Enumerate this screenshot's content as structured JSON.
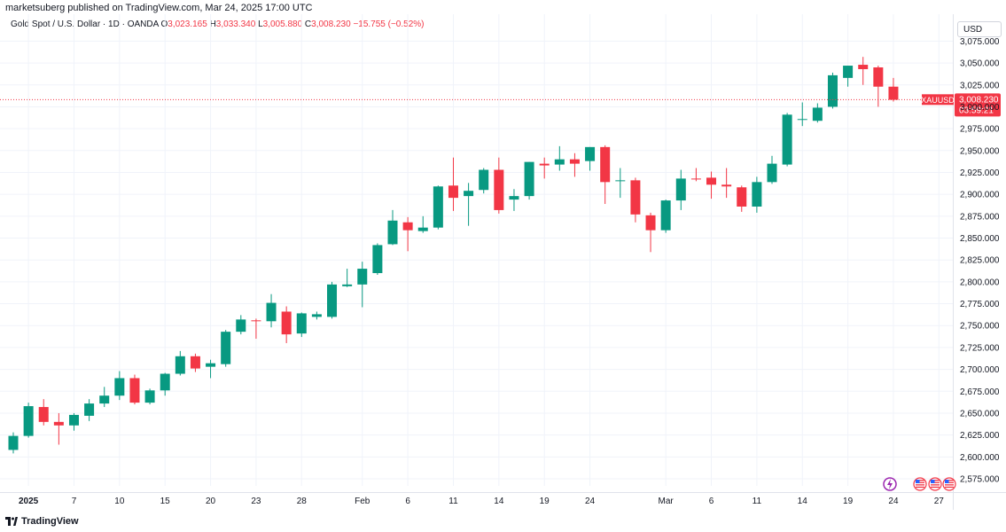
{
  "header": {
    "published": "marketsuberg published on TradingView.com, Mar 24, 2025 17:00 UTC"
  },
  "legend": {
    "symbol": "Gold Spot / U.S. Dollar · 1D · OANDA",
    "o_label": "O",
    "o_value": "3,023.165",
    "h_label": "H",
    "h_value": "3,033.340",
    "l_label": "L",
    "l_value": "3,005.880",
    "c_label": "C",
    "c_value": "3,008.230",
    "change": "−15.755 (−0.52%)"
  },
  "currency": "USD",
  "price_label": {
    "symbol": "XAUUSD",
    "price": "3,008.230",
    "countdown": "03:59:21"
  },
  "footer": {
    "brand": "TradingView"
  },
  "colors": {
    "up": "#089981",
    "down": "#f23645",
    "grid": "#f0f3fa",
    "axis_text": "#131722",
    "last_price_line": "#f23645"
  },
  "icons": [
    "lightning-event-icon",
    "us-flag-event-icon"
  ],
  "chart_data": {
    "type": "candlestick",
    "title": "Gold Spot / U.S. Dollar · 1D · OANDA",
    "ylim": [
      2560,
      3090
    ],
    "y_ticks": [
      2575,
      2600,
      2625,
      2650,
      2675,
      2700,
      2725,
      2750,
      2775,
      2800,
      2825,
      2850,
      2875,
      2900,
      2925,
      2950,
      2975,
      3000,
      3025,
      3050,
      3075
    ],
    "y_tick_labels": [
      "2,575.000",
      "2,600.000",
      "2,625.000",
      "2,650.000",
      "2,675.000",
      "2,700.000",
      "2,725.000",
      "2,750.000",
      "2,775.000",
      "2,800.000",
      "2,825.000",
      "2,850.000",
      "2,875.000",
      "2,900.000",
      "2,925.000",
      "2,950.000",
      "2,975.000",
      "3,000.000",
      "3,025.000",
      "3,050.000",
      "3,075.000"
    ],
    "x_ticks": [
      {
        "label": "2025",
        "index": 1,
        "bold": true
      },
      {
        "label": "7",
        "index": 4
      },
      {
        "label": "10",
        "index": 7
      },
      {
        "label": "15",
        "index": 10
      },
      {
        "label": "20",
        "index": 13
      },
      {
        "label": "23",
        "index": 16
      },
      {
        "label": "28",
        "index": 19
      },
      {
        "label": "Feb",
        "index": 23
      },
      {
        "label": "6",
        "index": 26
      },
      {
        "label": "11",
        "index": 29
      },
      {
        "label": "14",
        "index": 32
      },
      {
        "label": "19",
        "index": 35
      },
      {
        "label": "24",
        "index": 38
      },
      {
        "label": "Mar",
        "index": 43
      },
      {
        "label": "6",
        "index": 46
      },
      {
        "label": "11",
        "index": 49
      },
      {
        "label": "14",
        "index": 52
      },
      {
        "label": "19",
        "index": 55
      },
      {
        "label": "24",
        "index": 58
      },
      {
        "label": "27",
        "index": 61
      }
    ],
    "last_price": 3008.23,
    "candles": [
      {
        "o": 2608,
        "h": 2628,
        "l": 2604,
        "c": 2624
      },
      {
        "o": 2624,
        "h": 2662,
        "l": 2622,
        "c": 2658
      },
      {
        "o": 2657,
        "h": 2666,
        "l": 2636,
        "c": 2640
      },
      {
        "o": 2640,
        "h": 2650,
        "l": 2614,
        "c": 2636
      },
      {
        "o": 2636,
        "h": 2650,
        "l": 2630,
        "c": 2648
      },
      {
        "o": 2647,
        "h": 2666,
        "l": 2641,
        "c": 2661
      },
      {
        "o": 2661,
        "h": 2680,
        "l": 2657,
        "c": 2670
      },
      {
        "o": 2670,
        "h": 2698,
        "l": 2665,
        "c": 2690
      },
      {
        "o": 2690,
        "h": 2694,
        "l": 2660,
        "c": 2662
      },
      {
        "o": 2662,
        "h": 2678,
        "l": 2660,
        "c": 2676
      },
      {
        "o": 2676,
        "h": 2696,
        "l": 2670,
        "c": 2695
      },
      {
        "o": 2695,
        "h": 2721,
        "l": 2693,
        "c": 2715
      },
      {
        "o": 2715,
        "h": 2718,
        "l": 2697,
        "c": 2701
      },
      {
        "o": 2703,
        "h": 2711,
        "l": 2690,
        "c": 2707
      },
      {
        "o": 2706,
        "h": 2745,
        "l": 2703,
        "c": 2743
      },
      {
        "o": 2743,
        "h": 2762,
        "l": 2740,
        "c": 2757
      },
      {
        "o": 2756,
        "h": 2758,
        "l": 2735,
        "c": 2755
      },
      {
        "o": 2755,
        "h": 2786,
        "l": 2748,
        "c": 2776
      },
      {
        "o": 2766,
        "h": 2772,
        "l": 2730,
        "c": 2740
      },
      {
        "o": 2741,
        "h": 2765,
        "l": 2737,
        "c": 2764
      },
      {
        "o": 2760,
        "h": 2766,
        "l": 2757,
        "c": 2763
      },
      {
        "o": 2760,
        "h": 2800,
        "l": 2758,
        "c": 2797
      },
      {
        "o": 2795,
        "h": 2815,
        "l": 2794,
        "c": 2797
      },
      {
        "o": 2797,
        "h": 2823,
        "l": 2771,
        "c": 2815
      },
      {
        "o": 2810,
        "h": 2844,
        "l": 2808,
        "c": 2842
      },
      {
        "o": 2843,
        "h": 2882,
        "l": 2842,
        "c": 2870
      },
      {
        "o": 2868,
        "h": 2874,
        "l": 2835,
        "c": 2859
      },
      {
        "o": 2858,
        "h": 2875,
        "l": 2856,
        "c": 2862
      },
      {
        "o": 2862,
        "h": 2910,
        "l": 2860,
        "c": 2909
      },
      {
        "o": 2910,
        "h": 2942,
        "l": 2881,
        "c": 2896
      },
      {
        "o": 2898,
        "h": 2913,
        "l": 2864,
        "c": 2904
      },
      {
        "o": 2905,
        "h": 2930,
        "l": 2901,
        "c": 2928
      },
      {
        "o": 2928,
        "h": 2942,
        "l": 2878,
        "c": 2882
      },
      {
        "o": 2894,
        "h": 2906,
        "l": 2881,
        "c": 2898
      },
      {
        "o": 2898,
        "h": 2937,
        "l": 2894,
        "c": 2937
      },
      {
        "o": 2935,
        "h": 2942,
        "l": 2918,
        "c": 2933
      },
      {
        "o": 2934,
        "h": 2955,
        "l": 2927,
        "c": 2940
      },
      {
        "o": 2940,
        "h": 2947,
        "l": 2920,
        "c": 2935
      },
      {
        "o": 2938,
        "h": 2954,
        "l": 2927,
        "c": 2954
      },
      {
        "o": 2954,
        "h": 2956,
        "l": 2889,
        "c": 2914
      },
      {
        "o": 2916,
        "h": 2930,
        "l": 2896,
        "c": 2916
      },
      {
        "o": 2916,
        "h": 2919,
        "l": 2868,
        "c": 2877
      },
      {
        "o": 2876,
        "h": 2879,
        "l": 2834,
        "c": 2859
      },
      {
        "o": 2859,
        "h": 2894,
        "l": 2856,
        "c": 2893
      },
      {
        "o": 2893,
        "h": 2928,
        "l": 2882,
        "c": 2918
      },
      {
        "o": 2918,
        "h": 2930,
        "l": 2915,
        "c": 2917
      },
      {
        "o": 2919,
        "h": 2926,
        "l": 2895,
        "c": 2911
      },
      {
        "o": 2911,
        "h": 2930,
        "l": 2896,
        "c": 2909
      },
      {
        "o": 2908,
        "h": 2910,
        "l": 2880,
        "c": 2886
      },
      {
        "o": 2886,
        "h": 2920,
        "l": 2879,
        "c": 2914
      },
      {
        "o": 2914,
        "h": 2944,
        "l": 2912,
        "c": 2935
      },
      {
        "o": 2934,
        "h": 2993,
        "l": 2932,
        "c": 2991
      },
      {
        "o": 2985,
        "h": 3005,
        "l": 2978,
        "c": 2986
      },
      {
        "o": 2984,
        "h": 3004,
        "l": 2982,
        "c": 2999
      },
      {
        "o": 3000,
        "h": 3039,
        "l": 2998,
        "c": 3036
      },
      {
        "o": 3033,
        "h": 3047,
        "l": 3023,
        "c": 3047
      },
      {
        "o": 3048,
        "h": 3057,
        "l": 3025,
        "c": 3043
      },
      {
        "o": 3045,
        "h": 3047,
        "l": 3000,
        "c": 3023
      },
      {
        "o": 3023,
        "h": 3033,
        "l": 3006,
        "c": 3008
      }
    ]
  }
}
